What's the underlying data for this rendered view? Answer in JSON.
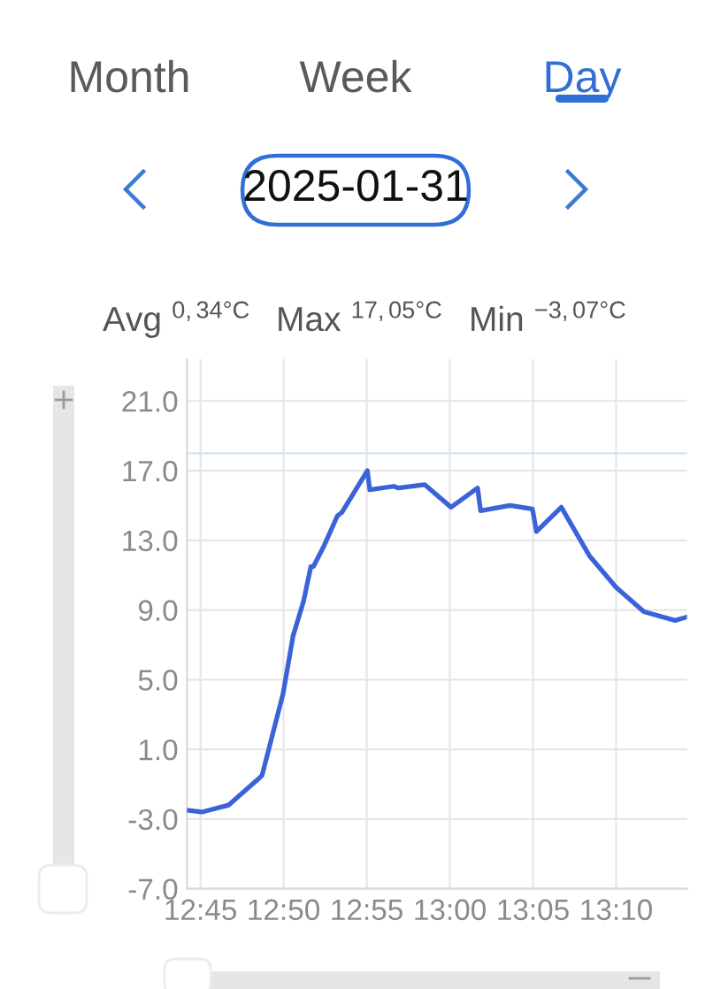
{
  "chart_data": {
    "type": "line",
    "title": "2025-01-31",
    "annotations": [
      "Month",
      "Week",
      "Day",
      "Avg $^{0,34°C}$",
      "Max $^{17,05°C}$",
      "Min $^{−3,07°C}$"
    ],
    "x": [
      12.7365,
      12.7512,
      12.7783,
      12.808,
      12.8117,
      12.8328,
      12.8428,
      12.8533,
      12.8607,
      12.8633,
      12.874,
      12.8872,
      12.8917,
      12.9173,
      12.9197,
      12.9438,
      12.9483,
      12.9747,
      13.0012,
      13.0278,
      13.0308,
      13.0603,
      13.0828,
      13.0868,
      13.1117,
      13.14,
      13.1667,
      13.1945,
      13.2258,
      13.2377
    ],
    "series": [
      {
        "color": "#3b62d9",
        "values": [
          -2.5,
          -2.6,
          -2.2,
          -0.7,
          -0.5,
          4.2,
          7.5,
          9.5,
          11.5,
          11.5,
          12.7,
          14.4,
          14.6,
          17.0,
          15.9,
          16.1,
          16.0,
          16.2,
          14.9,
          16.0,
          14.7,
          15.0,
          14.8,
          13.5,
          14.9,
          12.1,
          10.3,
          8.9,
          8.4,
          8.6
        ]
      }
    ],
    "xlim": [
      12.7365,
      13.2377
    ],
    "ylim": [
      -7,
      23.4
    ],
    "xticks": [
      {
        "value": 12.75,
        "label": "12:45"
      },
      {
        "value": 12.8333,
        "label": "12:50"
      },
      {
        "value": 12.9167,
        "label": "12:55"
      },
      {
        "value": 13,
        "label": "13:00"
      },
      {
        "value": 13.0833,
        "label": "13:05"
      },
      {
        "value": 13.1667,
        "label": "13:10"
      }
    ],
    "yticks": [
      {
        "value": -7,
        "label": "-7.0"
      },
      {
        "value": -3,
        "label": "-3.0"
      },
      {
        "value": 1,
        "label": "1.0"
      },
      {
        "value": 5,
        "label": "5.0"
      },
      {
        "value": 9,
        "label": "9.0"
      },
      {
        "value": 13,
        "label": "13.0"
      },
      {
        "value": 17,
        "label": "17.0"
      },
      {
        "value": 21,
        "label": "21.0"
      }
    ],
    "grid": true,
    "ref_lines": [
      {
        "axis": "y",
        "value": 18,
        "color": "#d3e2f7"
      }
    ]
  }
}
